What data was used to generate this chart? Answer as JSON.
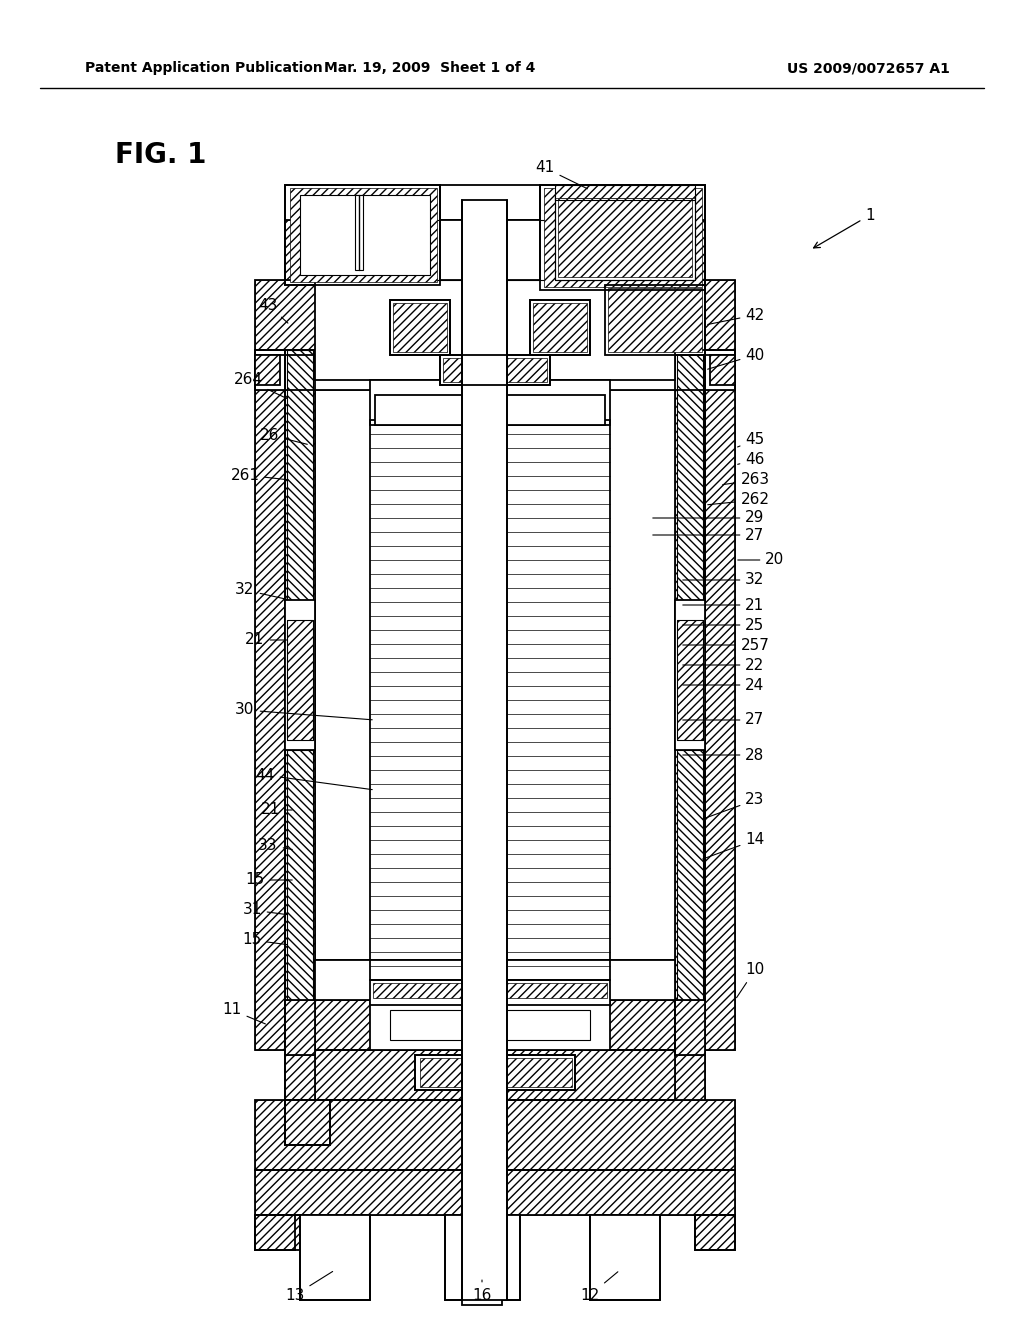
{
  "title": "FIG. 1",
  "header_left": "Patent Application Publication",
  "header_mid": "Mar. 19, 2009  Sheet 1 of 4",
  "header_right": "US 2009/0072657 A1",
  "background_color": "#ffffff",
  "line_color": "#000000"
}
